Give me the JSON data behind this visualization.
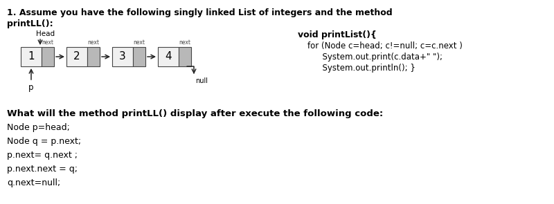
{
  "title_line1": "1. Assume you have the following singly linked List of integers and the method",
  "title_line2": "printLL():",
  "head_label": "Head",
  "nodes": [
    "1",
    "2",
    "3",
    "4"
  ],
  "p_label": "p",
  "null_label": "null",
  "next_label": "next",
  "code_line1": "void printList(){",
  "code_line2": "for (Node c=head; c!=null; c=c.next )",
  "code_line3": "  System.out.print(c.data+\" \");",
  "code_line4": "  System.out.println(); }",
  "bold_question": "What will the method printLL() display after execute the following code:",
  "code_lines2": [
    "Node p=head;",
    "Node q = p.next;",
    "p.next= q.next ;",
    "p.next.next = q;",
    "q.next=null;"
  ],
  "bg_color": "#ffffff",
  "node_fill": "#e8e8e8",
  "node_fill_next": "#b8b8b8",
  "node_border": "#444444",
  "arrow_color": "#222222",
  "text_color": "#000000"
}
